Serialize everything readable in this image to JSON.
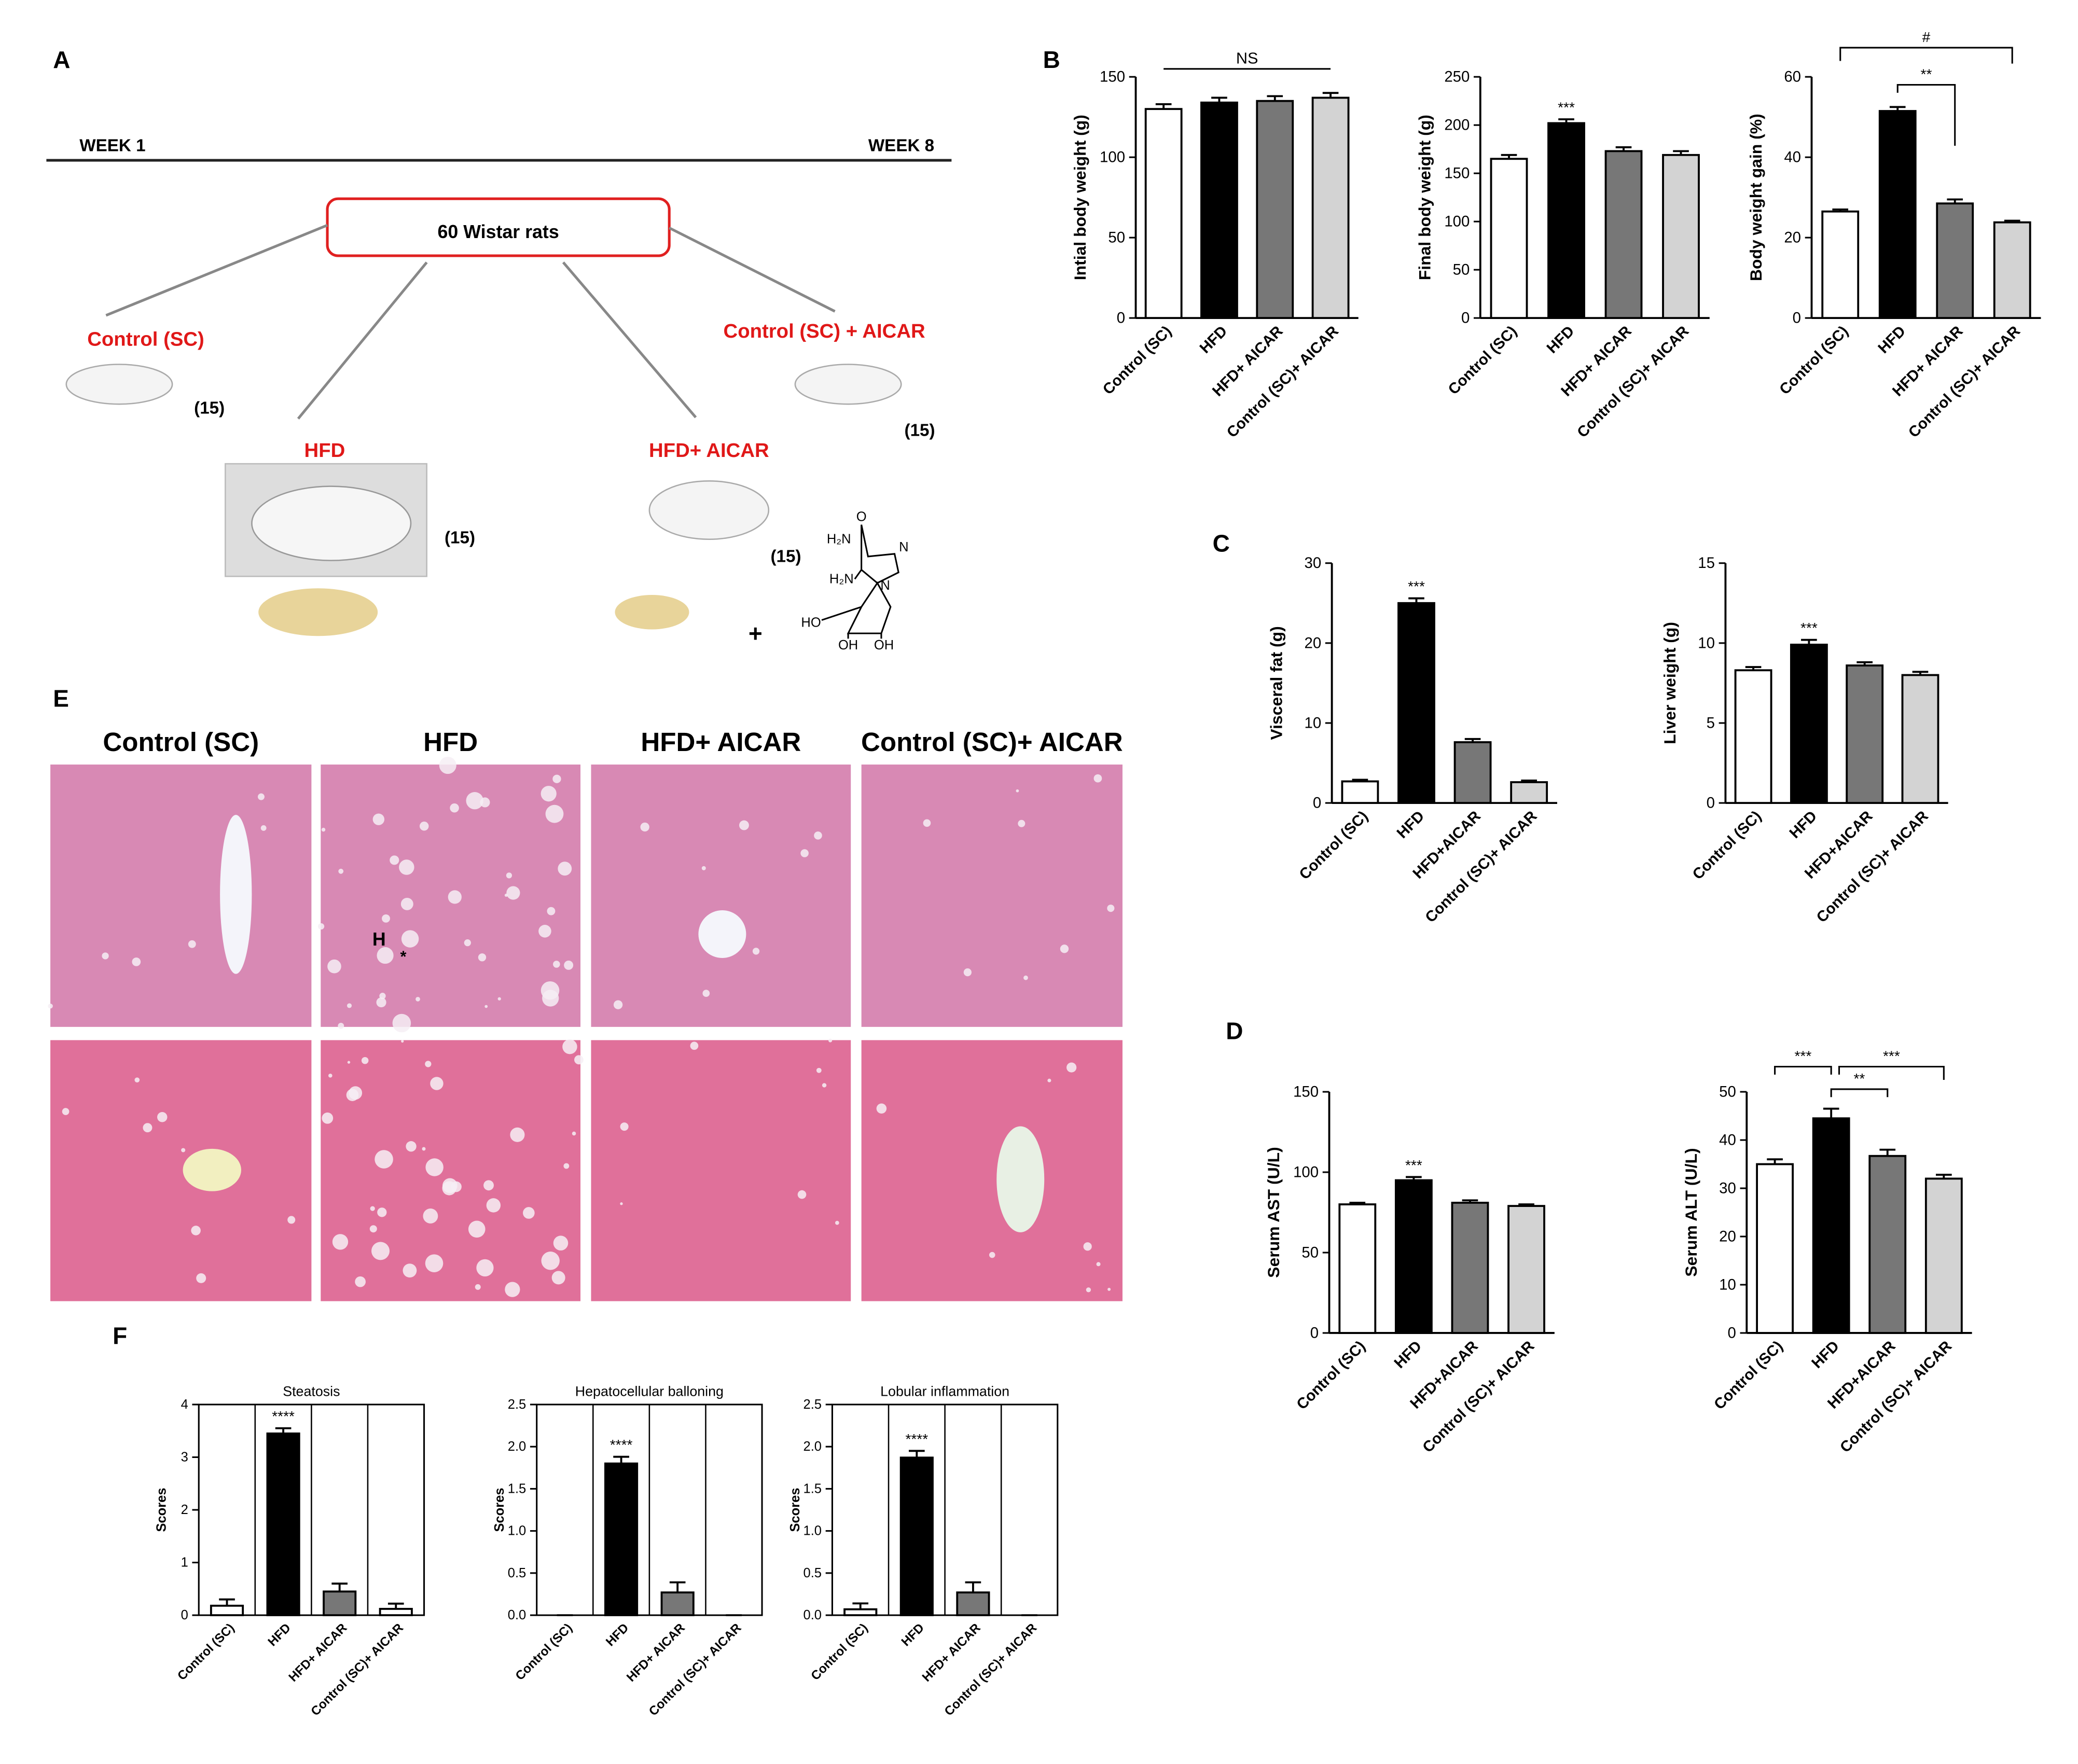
{
  "panel_labels": [
    "A",
    "B",
    "C",
    "D",
    "E",
    "F"
  ],
  "diagram": {
    "week_start": "WEEK 1",
    "week_end": "WEEK 8",
    "source": "60 Wistar rats",
    "groups": [
      {
        "name": "Control (SC)",
        "n": "(15)"
      },
      {
        "name": "HFD",
        "n": "(15)"
      },
      {
        "name": "HFD+ AICAR",
        "n": "(15)"
      },
      {
        "name": "Control (SC) + AICAR",
        "n": "(15)"
      }
    ],
    "plus": "+",
    "molecule": [
      "O",
      "H₂N",
      "N",
      "N",
      "H₂N",
      "HO",
      "OH",
      "OH"
    ]
  },
  "histology": {
    "columns": [
      "Control (SC)",
      "HFD",
      "HFD+ AICAR",
      "Control (SC)+ AICAR"
    ],
    "marks": [
      "H",
      "*"
    ]
  },
  "chart_data": [
    {
      "type": "bar",
      "ylabel": "Intial body weight (g)",
      "categories": [
        "Control (SC)",
        "HFD",
        "HFD+ AICAR",
        "Control (SC)+ AICAR"
      ],
      "values": [
        130,
        134,
        135,
        137
      ],
      "errors": [
        3,
        3,
        3,
        3
      ],
      "colors": [
        "#ffffff",
        "#000000",
        "#777777",
        "#d3d3d3"
      ],
      "ylim": [
        0,
        150
      ],
      "yticks": [
        0,
        50,
        100,
        150
      ],
      "annotations": [
        "NS"
      ]
    },
    {
      "type": "bar",
      "ylabel": "Final body weight (g)",
      "categories": [
        "Control (SC)",
        "HFD",
        "HFD+ AICAR",
        "Control (SC)+ AICAR"
      ],
      "values": [
        165,
        202,
        173,
        169
      ],
      "errors": [
        4,
        4,
        4,
        4
      ],
      "colors": [
        "#ffffff",
        "#000000",
        "#777777",
        "#d3d3d3"
      ],
      "ylim": [
        0,
        250
      ],
      "yticks": [
        0,
        50,
        100,
        150,
        200,
        250
      ],
      "annotations": [
        "***"
      ]
    },
    {
      "type": "bar",
      "ylabel": "Body weight gain (%)",
      "categories": [
        "Control (SC)",
        "HFD",
        "HFD+ AICAR",
        "Control (SC)+ AICAR"
      ],
      "values": [
        26.5,
        51.5,
        28.5,
        23.8
      ],
      "errors": [
        0.5,
        1,
        1,
        0.4
      ],
      "colors": [
        "#ffffff",
        "#000000",
        "#777777",
        "#d3d3d3"
      ],
      "ylim": [
        0,
        60
      ],
      "yticks": [
        0,
        20,
        40,
        60
      ],
      "annotations": [
        "#",
        "**"
      ]
    },
    {
      "type": "bar",
      "ylabel": "Visceral fat (g)",
      "categories": [
        "Control (SC)",
        "HFD",
        "HFD+AICAR",
        "Control (SC)+ AICAR"
      ],
      "values": [
        2.7,
        25,
        7.6,
        2.6
      ],
      "errors": [
        0.2,
        0.6,
        0.4,
        0.2
      ],
      "colors": [
        "#ffffff",
        "#000000",
        "#777777",
        "#d3d3d3"
      ],
      "ylim": [
        0,
        30
      ],
      "yticks": [
        0,
        10,
        20,
        30
      ],
      "annotations": [
        "***"
      ]
    },
    {
      "type": "bar",
      "ylabel": "Liver weight (g)",
      "categories": [
        "Control (SC)",
        "HFD",
        "HFD+AICAR",
        "Control (SC)+ AICAR"
      ],
      "values": [
        8.3,
        9.9,
        8.6,
        8.0
      ],
      "errors": [
        0.2,
        0.3,
        0.2,
        0.2
      ],
      "colors": [
        "#ffffff",
        "#000000",
        "#777777",
        "#d3d3d3"
      ],
      "ylim": [
        0,
        15
      ],
      "yticks": [
        0,
        5,
        10,
        15
      ],
      "annotations": [
        "***"
      ]
    },
    {
      "type": "bar",
      "ylabel": "Serum AST (U/L)",
      "categories": [
        "Control (SC)",
        "HFD",
        "HFD+AICAR",
        "Control (SC)+ AICAR"
      ],
      "values": [
        80,
        95,
        81,
        79
      ],
      "errors": [
        1,
        2,
        1.5,
        1
      ],
      "colors": [
        "#ffffff",
        "#000000",
        "#777777",
        "#d3d3d3"
      ],
      "ylim": [
        0,
        150
      ],
      "yticks": [
        0,
        50,
        100,
        150
      ],
      "annotations": [
        "***"
      ]
    },
    {
      "type": "bar",
      "ylabel": "Serum ALT (U/L)",
      "categories": [
        "Control (SC)",
        "HFD",
        "HFD+AICAR",
        "Control (SC)+ AICAR"
      ],
      "values": [
        35,
        44.5,
        36.7,
        32
      ],
      "errors": [
        1,
        2,
        1.3,
        0.8
      ],
      "colors": [
        "#ffffff",
        "#000000",
        "#777777",
        "#d3d3d3"
      ],
      "ylim": [
        0,
        50
      ],
      "yticks": [
        0,
        10,
        20,
        30,
        40,
        50
      ],
      "annotations": [
        "***",
        "**",
        "***"
      ]
    },
    {
      "type": "bar",
      "title": "Steatosis",
      "ylabel": "Scores",
      "categories": [
        "Control (SC)",
        "HFD",
        "HFD+ AICAR",
        "Control (SC)+ AICAR"
      ],
      "values": [
        0.18,
        3.45,
        0.45,
        0.12
      ],
      "errors": [
        0.12,
        0.1,
        0.15,
        0.1
      ],
      "colors": [
        "#ffffff",
        "#000000",
        "#777777",
        "#ffffff"
      ],
      "ylim": [
        0,
        4
      ],
      "yticks": [
        0,
        1,
        2,
        3,
        4
      ],
      "annotations": [
        "****"
      ]
    },
    {
      "type": "bar",
      "title": "Hepatocellular balloning",
      "ylabel": "Scores",
      "categories": [
        "Control (SC)",
        "HFD",
        "HFD+ AICAR",
        "Control (SC)+ AICAR"
      ],
      "values": [
        0,
        1.8,
        0.27,
        0
      ],
      "errors": [
        0,
        0.08,
        0.12,
        0
      ],
      "colors": [
        "#ffffff",
        "#000000",
        "#777777",
        "#ffffff"
      ],
      "ylim": [
        0,
        2.5
      ],
      "yticks": [
        {
          "value": 0,
          "label": "0.0"
        },
        0.5,
        {
          "value": 1,
          "label": "1.0"
        },
        1.5,
        {
          "value": 2,
          "label": "2.0"
        },
        2.5
      ],
      "annotations": [
        "****"
      ]
    },
    {
      "type": "bar",
      "title": "Lobular inflammation",
      "ylabel": "Scores",
      "categories": [
        "Control (SC)",
        "HFD",
        "HFD+ AICAR",
        "Control (SC)+ AICAR"
      ],
      "values": [
        0.07,
        1.87,
        0.27,
        0
      ],
      "errors": [
        0.07,
        0.08,
        0.12,
        0
      ],
      "colors": [
        "#ffffff",
        "#000000",
        "#777777",
        "#ffffff"
      ],
      "ylim": [
        0,
        2.5
      ],
      "yticks": [
        {
          "value": 0,
          "label": "0.0"
        },
        0.5,
        {
          "value": 1,
          "label": "1.0"
        },
        1.5,
        {
          "value": 2,
          "label": "2.0"
        },
        2.5
      ],
      "annotations": [
        "****"
      ]
    }
  ]
}
